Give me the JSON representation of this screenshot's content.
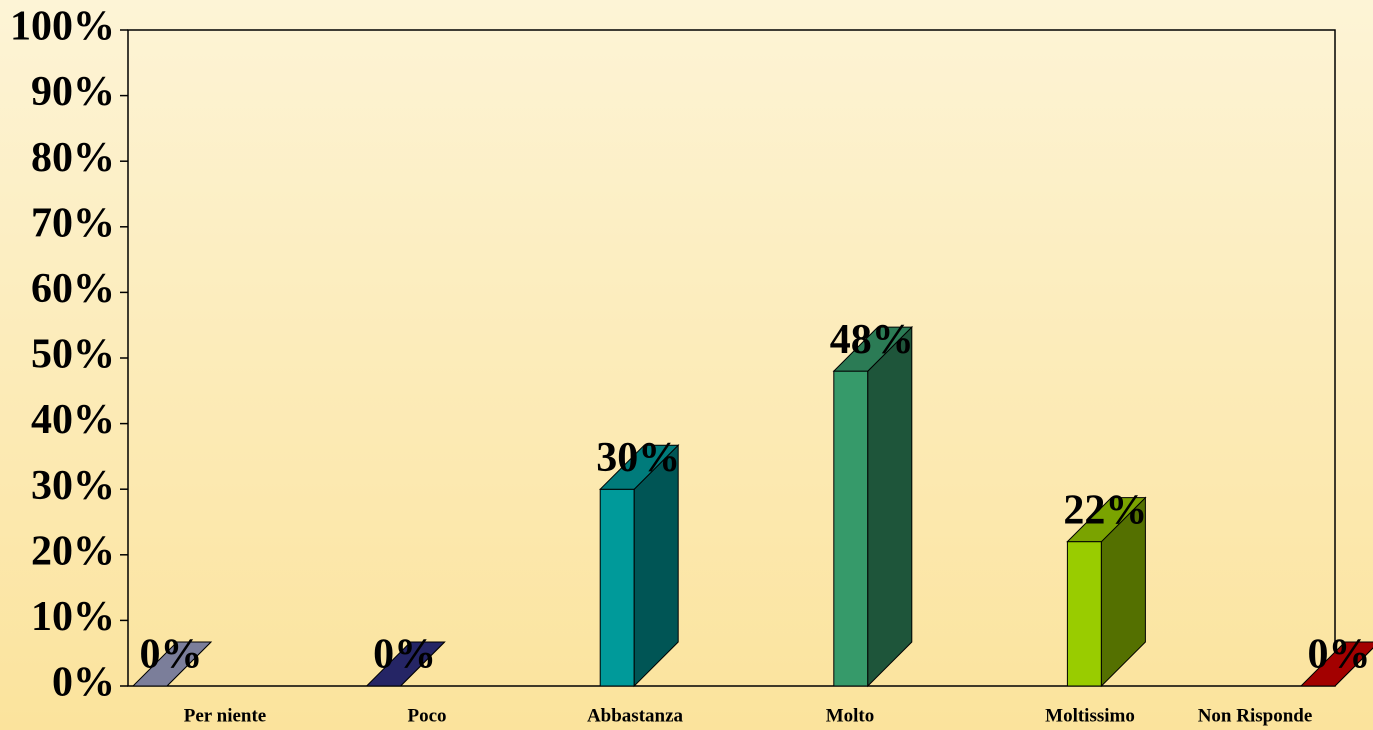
{
  "chart_data": {
    "type": "bar3d",
    "categories": [
      "Per niente",
      "Poco",
      "Abbastanza",
      "Molto",
      "Moltissimo",
      "Non Risponde"
    ],
    "values": [
      0,
      0,
      30,
      48,
      22,
      0
    ],
    "value_labels": [
      "0%",
      "0%",
      "30%",
      "48%",
      "22%",
      "0%"
    ],
    "colors": [
      "#9a9ec0",
      "#2e2e7e",
      "#009a9a",
      "#369a6a",
      "#99cc00",
      "#cc0000"
    ],
    "ylim": [
      0,
      100
    ],
    "yticks": [
      {
        "value": 0,
        "label": "0%"
      },
      {
        "value": 10,
        "label": "10%"
      },
      {
        "value": 20,
        "label": "20%"
      },
      {
        "value": 30,
        "label": "30%"
      },
      {
        "value": 40,
        "label": "40%"
      },
      {
        "value": 50,
        "label": "50%"
      },
      {
        "value": 60,
        "label": "60%"
      },
      {
        "value": 70,
        "label": "70%"
      },
      {
        "value": 80,
        "label": "80%"
      },
      {
        "value": 90,
        "label": "90%"
      },
      {
        "value": 100,
        "label": "100%"
      }
    ]
  }
}
